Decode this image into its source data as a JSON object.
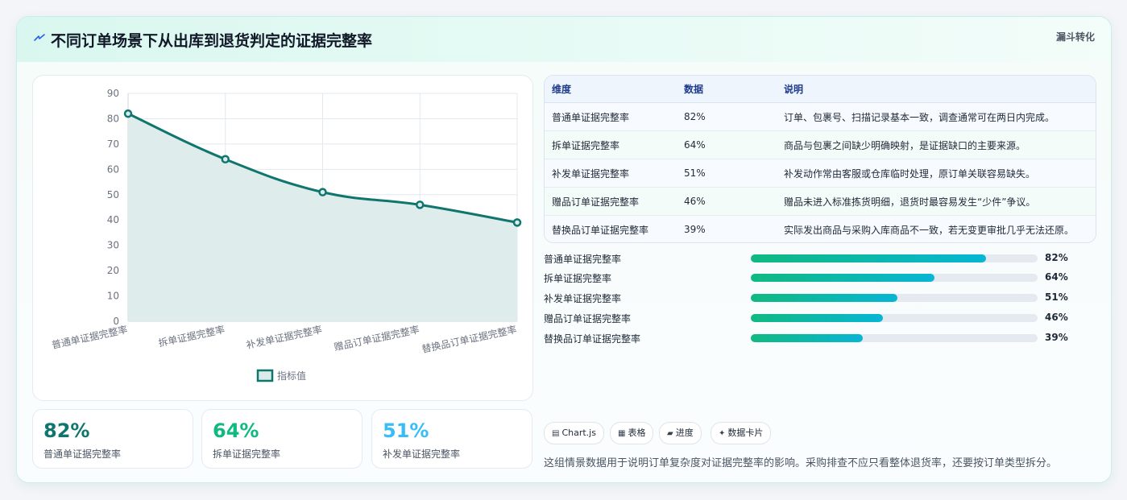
{
  "header": {
    "title": "不同订单场景下从出库到退货判定的证据完整率",
    "tag": "漏斗转化",
    "icon": "lightning-icon"
  },
  "chart_data": {
    "type": "line",
    "categories": [
      "普通单证据完整率",
      "拆单证据完整率",
      "补发单证据完整率",
      "赠品订单证据完整率",
      "替换品订单证据完整率"
    ],
    "series": [
      {
        "name": "指标值",
        "values": [
          82,
          64,
          51,
          46,
          39
        ]
      }
    ],
    "ylim": [
      0,
      90
    ],
    "yticks": [
      0,
      10,
      20,
      30,
      40,
      50,
      60,
      70,
      80,
      90
    ],
    "fill": true,
    "grid": true,
    "legend": "bottom",
    "line_color": "#0f766e",
    "fill_color": "#dcebea"
  },
  "stats": [
    {
      "value": "82%",
      "label": "普通单证据完整率",
      "color": "#0f766e"
    },
    {
      "value": "64%",
      "label": "拆单证据完整率",
      "color": "#10b981"
    },
    {
      "value": "51%",
      "label": "补发单证据完整率",
      "color": "#38bdf8"
    }
  ],
  "table": {
    "headers": [
      "维度",
      "数据",
      "说明"
    ],
    "rows": [
      {
        "dim": "普通单证据完整率",
        "value": "82%",
        "desc": "订单、包裹号、扫描记录基本一致，调查通常可在两日内完成。"
      },
      {
        "dim": "拆单证据完整率",
        "value": "64%",
        "desc": "商品与包裹之间缺少明确映射，是证据缺口的主要来源。"
      },
      {
        "dim": "补发单证据完整率",
        "value": "51%",
        "desc": "补发动作常由客服或仓库临时处理，原订单关联容易缺失。"
      },
      {
        "dim": "赠品订单证据完整率",
        "value": "46%",
        "desc": "赠品未进入标准拣货明细，退货时最容易发生“少件”争议。"
      },
      {
        "dim": "替换品订单证据完整率",
        "value": "39%",
        "desc": "实际发出商品与采购入库商品不一致，若无变更审批几乎无法还原。"
      }
    ]
  },
  "progress": [
    {
      "label": "普通单证据完整率",
      "value": 82,
      "text": "82%"
    },
    {
      "label": "拆单证据完整率",
      "value": 64,
      "text": "64%"
    },
    {
      "label": "补发单证据完整率",
      "value": 51,
      "text": "51%"
    },
    {
      "label": "赠品订单证据完整率",
      "value": 46,
      "text": "46%"
    },
    {
      "label": "替换品订单证据完整率",
      "value": 39,
      "text": "39%"
    }
  ],
  "chips": [
    {
      "icon": "▤",
      "label": "Chart.js"
    },
    {
      "icon": "▦",
      "label": "表格"
    },
    {
      "icon": "▰",
      "label": "进度"
    },
    {
      "icon": "✦",
      "label": "数据卡片"
    }
  ],
  "note": "这组情景数据用于说明订单复杂度对证据完整率的影响。采购排查不应只看整体退货率，还要按订单类型拆分。"
}
